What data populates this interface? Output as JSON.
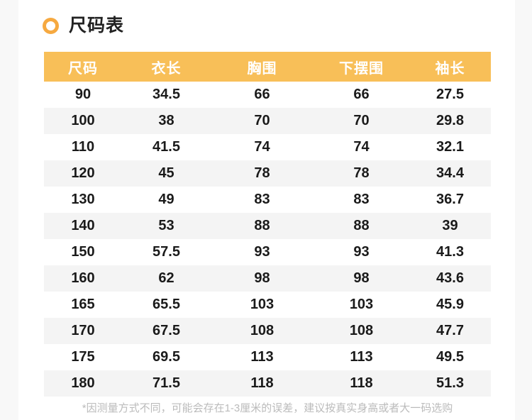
{
  "page": {
    "section_title": "尺码表",
    "footnote": "*因测量方式不同，可能会存在1-3厘米的误差，建议按真实身高或者大一码选购"
  },
  "colors": {
    "gutter_bg": "#f8f8f8",
    "bullet_ring": "#f6a940",
    "table_header_bg": "#f8bf58",
    "header_text": "#ffffff",
    "row_alt_bg": "#f4f4f4",
    "data_text": "#1a1a1a",
    "footnote_text": "#bbbbbb"
  },
  "chart_data": {
    "type": "table",
    "title": "尺码表",
    "columns": [
      "尺码",
      "衣长",
      "胸围",
      "下摆围",
      "袖长"
    ],
    "rows": [
      [
        "90",
        "34.5",
        "66",
        "66",
        "27.5"
      ],
      [
        "100",
        "38",
        "70",
        "70",
        "29.8"
      ],
      [
        "110",
        "41.5",
        "74",
        "74",
        "32.1"
      ],
      [
        "120",
        "45",
        "78",
        "78",
        "34.4"
      ],
      [
        "130",
        "49",
        "83",
        "83",
        "36.7"
      ],
      [
        "140",
        "53",
        "88",
        "88",
        "39"
      ],
      [
        "150",
        "57.5",
        "93",
        "93",
        "41.3"
      ],
      [
        "160",
        "62",
        "98",
        "98",
        "43.6"
      ],
      [
        "165",
        "65.5",
        "103",
        "103",
        "45.9"
      ],
      [
        "170",
        "67.5",
        "108",
        "108",
        "47.7"
      ],
      [
        "175",
        "69.5",
        "113",
        "113",
        "49.5"
      ],
      [
        "180",
        "71.5",
        "118",
        "118",
        "51.3"
      ]
    ],
    "layout_hints": {
      "header_style": "orange background, white bold text",
      "row_striping": "alternating white and light gray, starting white",
      "footnote_below_table": true
    },
    "footnote": "*因测量方式不同，可能会存在1-3厘米的误差，建议按真实身高或者大一码选购"
  }
}
